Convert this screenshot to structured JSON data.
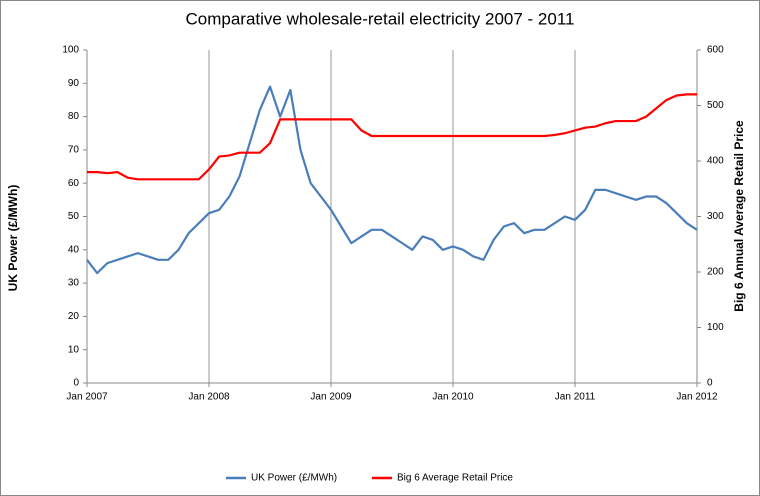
{
  "chart_data": {
    "type": "line",
    "title": "Comparative wholesale-retail electricity 2007 - 2011",
    "ylabel": "UK Power (£/MWh)",
    "y2label": "Big 6 Annual Average Retail Price",
    "x": [
      "2007-01",
      "2007-02",
      "2007-03",
      "2007-04",
      "2007-05",
      "2007-06",
      "2007-07",
      "2007-08",
      "2007-09",
      "2007-10",
      "2007-11",
      "2007-12",
      "2008-01",
      "2008-02",
      "2008-03",
      "2008-04",
      "2008-05",
      "2008-06",
      "2008-07",
      "2008-08",
      "2008-09",
      "2008-10",
      "2008-11",
      "2008-12",
      "2009-01",
      "2009-02",
      "2009-03",
      "2009-04",
      "2009-05",
      "2009-06",
      "2009-07",
      "2009-08",
      "2009-09",
      "2009-10",
      "2009-11",
      "2009-12",
      "2010-01",
      "2010-02",
      "2010-03",
      "2010-04",
      "2010-05",
      "2010-06",
      "2010-07",
      "2010-08",
      "2010-09",
      "2010-10",
      "2010-11",
      "2010-12",
      "2011-01",
      "2011-02",
      "2011-03",
      "2011-04",
      "2011-05",
      "2011-06",
      "2011-07",
      "2011-08",
      "2011-09",
      "2011-10",
      "2011-11",
      "2011-12",
      "2012-01"
    ],
    "series": [
      {
        "name": "UK Power (£/MWh)",
        "color": "#4a7ebb",
        "axis": "y",
        "values": [
          37,
          33,
          36,
          37,
          38,
          39,
          38,
          37,
          37,
          40,
          45,
          48,
          51,
          52,
          56,
          62,
          72,
          82,
          89,
          80,
          88,
          70,
          60,
          56,
          52,
          47,
          42,
          44,
          46,
          46,
          44,
          42,
          40,
          44,
          43,
          40,
          41,
          40,
          38,
          37,
          43,
          47,
          48,
          45,
          46,
          46,
          48,
          50,
          49,
          52,
          58,
          58,
          57,
          56,
          55,
          56,
          56,
          54,
          51,
          48,
          46
        ]
      },
      {
        "name": "Big 6 Average Retail Price",
        "color": "#ff0000",
        "axis": "y2",
        "values": [
          380,
          380,
          378,
          380,
          370,
          367,
          367,
          367,
          367,
          367,
          367,
          367,
          385,
          408,
          410,
          415,
          415,
          415,
          432,
          475,
          475,
          475,
          475,
          475,
          475,
          475,
          475,
          455,
          445,
          445,
          445,
          445,
          445,
          445,
          445,
          445,
          445,
          445,
          445,
          445,
          445,
          445,
          445,
          445,
          445,
          445,
          447,
          450,
          455,
          460,
          462,
          468,
          472,
          472,
          472,
          480,
          495,
          510,
          518,
          520,
          520
        ]
      }
    ],
    "xlim": [
      "2007-01",
      "2012-01"
    ],
    "xticks": [
      {
        "value": "2007-01",
        "label": "Jan 2007"
      },
      {
        "value": "2008-01",
        "label": "Jan 2008"
      },
      {
        "value": "2009-01",
        "label": "Jan 2009"
      },
      {
        "value": "2010-01",
        "label": "Jan 2010"
      },
      {
        "value": "2011-01",
        "label": "Jan 2011"
      },
      {
        "value": "2012-01",
        "label": "Jan 2012"
      }
    ],
    "ylim": [
      0,
      100
    ],
    "yticks": [
      0,
      10,
      20,
      30,
      40,
      50,
      60,
      70,
      80,
      90,
      100
    ],
    "y2lim": [
      0,
      600
    ],
    "y2ticks": [
      0,
      100,
      200,
      300,
      400,
      500,
      600
    ],
    "grid": true,
    "legend": "bottom"
  }
}
